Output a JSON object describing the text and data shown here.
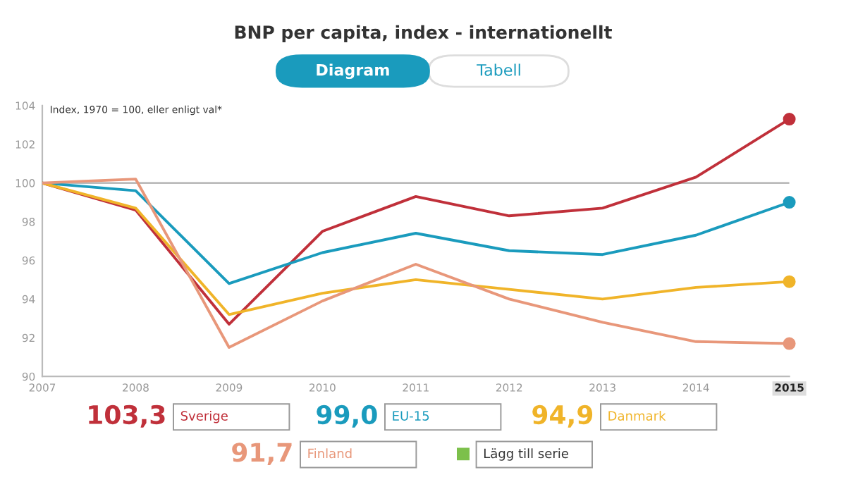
{
  "chart_data": {
    "type": "line",
    "title": "BNP per capita, index - internationellt",
    "x": [
      2007,
      2008,
      2009,
      2010,
      2011,
      2012,
      2013,
      2014,
      2015
    ],
    "xlim": [
      2007,
      2015
    ],
    "xticks": [
      2007,
      2008,
      2009,
      2010,
      2011,
      2012,
      2013,
      2014,
      2015
    ],
    "ylim": [
      90,
      104
    ],
    "yticks": [
      90,
      92,
      94,
      96,
      98,
      100,
      102,
      104
    ],
    "grid": false,
    "legend": "bottom",
    "ref_lines": [
      {
        "axis": "y",
        "value": 100,
        "color": "#bbbbbb"
      }
    ],
    "annotations": [
      "Index, 1970 = 100, eller enligt val*",
      "Diagram",
      "Tabell",
      "Lägg till serie",
      "103,3",
      "99,0",
      "94,9",
      "91,7"
    ],
    "series": [
      {
        "name": "Sverige",
        "color": "#c0303a",
        "values": [
          100,
          98.6,
          92.7,
          97.5,
          99.3,
          98.3,
          98.7,
          100.3,
          103.3
        ]
      },
      {
        "name": "EU-15",
        "color": "#1a9bbd",
        "values": [
          100,
          99.6,
          94.8,
          96.4,
          97.4,
          96.5,
          96.3,
          97.3,
          99.0
        ]
      },
      {
        "name": "Danmark",
        "color": "#f0b429",
        "values": [
          100,
          98.7,
          93.2,
          94.3,
          95.0,
          94.5,
          94.0,
          94.6,
          94.9
        ]
      },
      {
        "name": "Finland",
        "color": "#e8977a",
        "values": [
          100,
          100.2,
          91.5,
          93.9,
          95.8,
          94.0,
          92.8,
          91.8,
          91.7
        ]
      }
    ]
  }
}
